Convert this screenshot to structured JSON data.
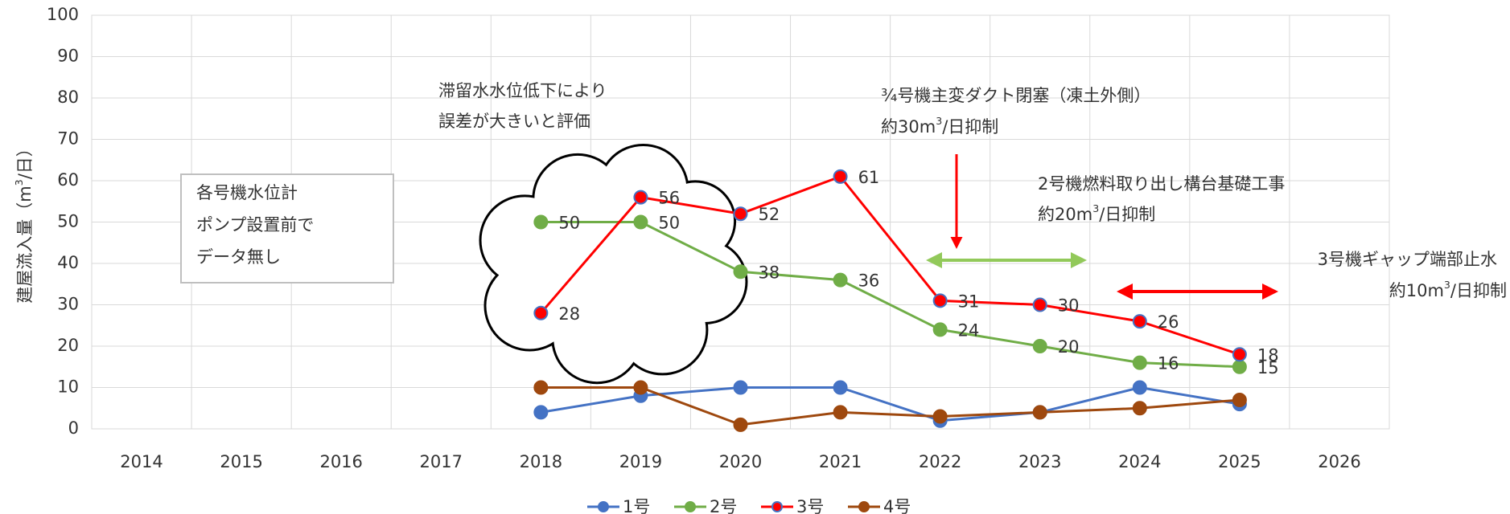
{
  "chart_data": {
    "type": "line",
    "ylabel": [
      "建屋流入量（m",
      "3",
      "/日）"
    ],
    "categories": [
      "2014",
      "2015",
      "2016",
      "2017",
      "2018",
      "2019",
      "2020",
      "2021",
      "2022",
      "2023",
      "2024",
      "2025",
      "2026"
    ],
    "series": [
      {
        "name": "1号",
        "color": "#4472c4",
        "values": [
          null,
          null,
          null,
          null,
          4,
          8,
          10,
          10,
          2,
          4,
          10,
          6,
          null
        ]
      },
      {
        "name": "2号",
        "color": "#70ad47",
        "data_labels": true,
        "values": [
          null,
          null,
          null,
          null,
          50,
          50,
          38,
          36,
          24,
          20,
          16,
          15,
          null
        ]
      },
      {
        "name": "3号",
        "color": "#ff0000",
        "marker_edgecolor": "#4472c4",
        "data_labels": true,
        "values": [
          null,
          null,
          null,
          null,
          28,
          56,
          52,
          61,
          31,
          30,
          26,
          18,
          null
        ]
      },
      {
        "name": "4号",
        "color": "#9e480e",
        "values": [
          null,
          null,
          null,
          null,
          10,
          10,
          1,
          4,
          3,
          4,
          5,
          7,
          null
        ]
      }
    ],
    "ylim": [
      0,
      100
    ],
    "yticks": [
      0,
      10,
      20,
      30,
      40,
      50,
      60,
      70,
      80,
      90,
      100
    ],
    "grid": true,
    "legend": "bottom",
    "annotations": [
      {
        "color": "#000000",
        "lines": [
          [
            "滞留水水位低下により"
          ],
          [
            "誤差が大きいと評価"
          ]
        ]
      },
      {
        "color": "#ff0000",
        "lines": [
          [
            "¾号機主変ダクト閉塞（凍土外側）"
          ],
          [
            "約30m",
            "3",
            "/日抑制"
          ]
        ]
      },
      {
        "color": "#92c95a",
        "lines": [
          [
            "2号機燃料取り出し構台基礎工事"
          ],
          [
            "約20m",
            "3",
            "/日抑制"
          ]
        ]
      },
      {
        "color": "#ff0000",
        "lines": [
          [
            "3号機ギャップ端部止水"
          ],
          [
            "約10m",
            "3",
            "/日抑制"
          ]
        ]
      },
      {
        "color": "#aaaaaa",
        "lines": [
          [
            "各号機水位計"
          ],
          [
            "ポンプ設置前で"
          ],
          [
            "データ無し"
          ]
        ]
      }
    ]
  }
}
